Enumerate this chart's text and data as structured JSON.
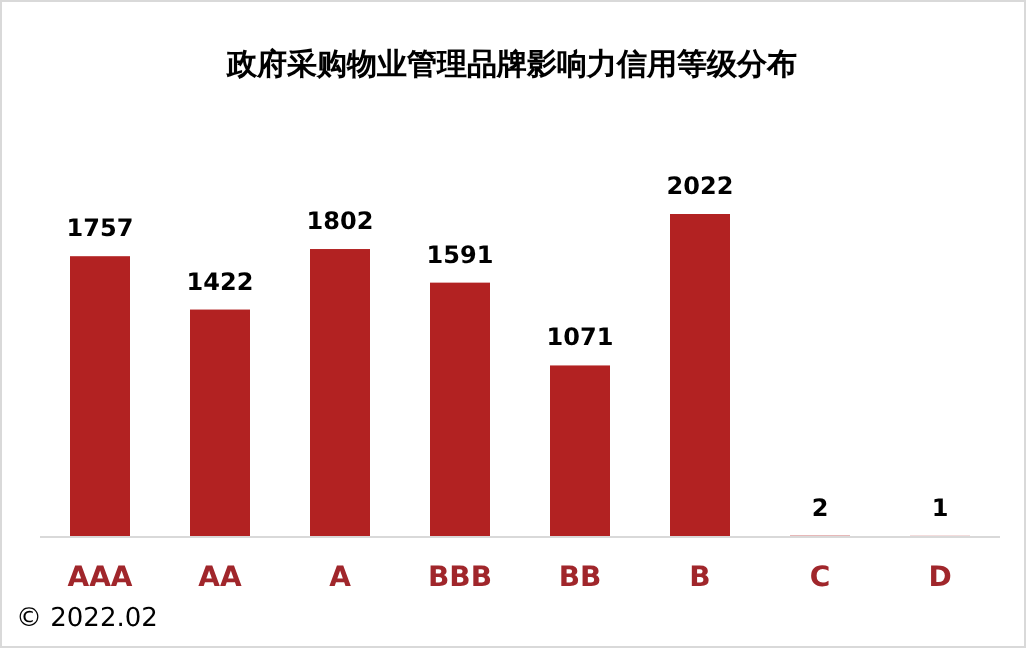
{
  "chart_data": {
    "type": "bar",
    "title": "政府采购物业管理品牌影响力信用等级分布",
    "categories": [
      "AAA",
      "AA",
      "A",
      "BBB",
      "BB",
      "B",
      "C",
      "D"
    ],
    "values": [
      1757,
      1422,
      1802,
      1591,
      1071,
      2022,
      2,
      1
    ],
    "color": "#b22222",
    "data_labels": true,
    "annotations": [
      "© 2022.02"
    ]
  }
}
